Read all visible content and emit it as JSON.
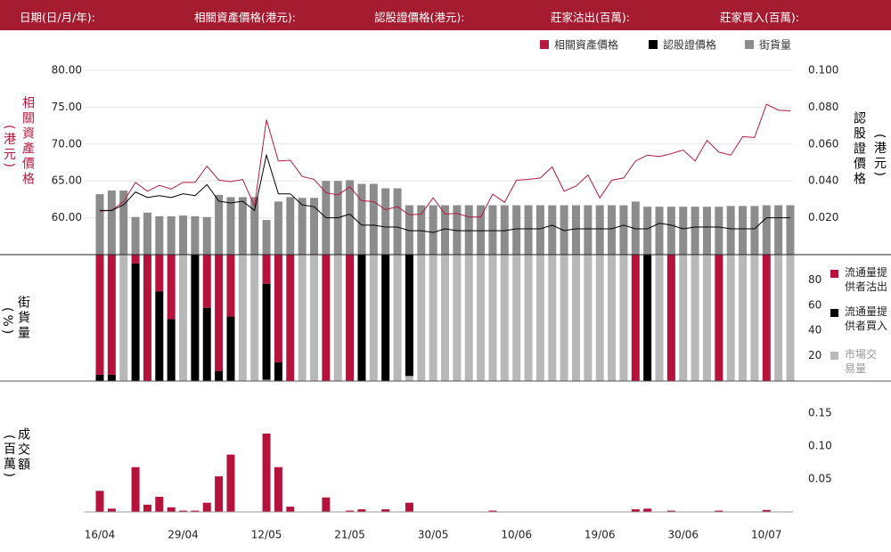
{
  "header": {
    "labels": [
      "日期(日/月/年):",
      "相關資產價格(港元):",
      "認股證價格(港元):",
      "莊家沽出(百萬):",
      "莊家買入(百萬):"
    ]
  },
  "chart_data": [
    {
      "type": "combo",
      "ylabel": "相關資產價格",
      "ylabel_unit": "(港元)",
      "y2label": "認股證價格",
      "y2label_unit": "(港元)",
      "ylim": [
        55,
        80
      ],
      "yticks": [
        {
          "value": 60,
          "label": "60.00"
        },
        {
          "value": 65,
          "label": "65.00"
        },
        {
          "value": 70,
          "label": "70.00"
        },
        {
          "value": 75,
          "label": "75.00"
        },
        {
          "value": 80,
          "label": "80.00"
        }
      ],
      "y2lim": [
        0,
        0.1
      ],
      "y2ticks": [
        {
          "value": 0.02,
          "label": "0.020"
        },
        {
          "value": 0.04,
          "label": "0.040"
        },
        {
          "value": 0.06,
          "label": "0.060"
        },
        {
          "value": 0.08,
          "label": "0.080"
        },
        {
          "value": 0.1,
          "label": "0.100"
        }
      ],
      "grid": true,
      "legend": "top-right",
      "series": [
        {
          "name": "相關資產價格",
          "color": "#b31b3f",
          "type": "line",
          "values": [
            60.9,
            61.0,
            62.2,
            64.8,
            63.6,
            64.4,
            63.9,
            64.8,
            64.8,
            67.0,
            65.1,
            64.9,
            65.2,
            61.6,
            73.3,
            67.7,
            67.8,
            65.6,
            65.2,
            63.4,
            63.1,
            64.2,
            62.3,
            62.2,
            61.1,
            61.5,
            60.4,
            60.5,
            62.7,
            60.5,
            60.6,
            60.1,
            60.1,
            63.2,
            62.1,
            65.1,
            65.2,
            65.4,
            66.9,
            63.6,
            64.3,
            65.8,
            62.7,
            65.1,
            65.4,
            67.7,
            68.5,
            68.3,
            68.7,
            69.2,
            67.7,
            70.5,
            68.9,
            68.5,
            71.0,
            70.9,
            75.4,
            74.6,
            74.5
          ]
        },
        {
          "name": "認股證價格",
          "color": "#000000",
          "type": "line",
          "axis": "y2",
          "values": [
            0.024,
            0.024,
            0.027,
            0.034,
            0.031,
            0.032,
            0.031,
            0.033,
            0.032,
            0.038,
            0.029,
            0.028,
            0.029,
            0.024,
            0.054,
            0.033,
            0.033,
            0.027,
            0.026,
            0.02,
            0.02,
            0.022,
            0.016,
            0.016,
            0.015,
            0.015,
            0.013,
            0.013,
            0.012,
            0.014,
            0.013,
            0.013,
            0.013,
            0.013,
            0.013,
            0.014,
            0.014,
            0.014,
            0.016,
            0.013,
            0.014,
            0.014,
            0.014,
            0.014,
            0.016,
            0.014,
            0.014,
            0.017,
            0.016,
            0.014,
            0.015,
            0.015,
            0.015,
            0.014,
            0.014,
            0.014,
            0.02,
            0.02,
            0.02
          ]
        },
        {
          "name": "街貨量",
          "color": "#8c8c8c",
          "type": "bar",
          "values": [
            63.2,
            63.7,
            63.7,
            60.1,
            60.7,
            60.2,
            60.2,
            60.3,
            60.2,
            60.1,
            63.1,
            62.8,
            62.8,
            62.8,
            59.7,
            62.2,
            62.8,
            62.7,
            62.7,
            65.0,
            65.0,
            65.1,
            64.6,
            64.6,
            64.0,
            64.0,
            61.7,
            61.7,
            61.7,
            61.7,
            61.7,
            61.7,
            61.7,
            61.7,
            61.7,
            61.7,
            61.7,
            61.7,
            61.7,
            61.7,
            61.7,
            61.7,
            61.7,
            61.7,
            61.7,
            62.2,
            61.5,
            61.5,
            61.5,
            61.5,
            61.5,
            61.5,
            61.5,
            61.6,
            61.6,
            61.6,
            61.7,
            61.7,
            61.7
          ]
        }
      ]
    },
    {
      "type": "stacked_bar",
      "ylabel": "街貨量",
      "ylabel_unit": "(%)",
      "ylim": [
        0,
        100
      ],
      "yticks": [
        20,
        40,
        60,
        80
      ],
      "legend": "right",
      "series": [
        {
          "name": "流通量提供者沽出",
          "color": "#b5133c",
          "values": [
            95,
            95,
            0,
            7,
            100,
            29,
            51,
            0,
            0,
            42,
            92,
            49,
            0,
            0,
            23,
            85,
            100,
            0,
            0,
            100,
            0,
            100,
            0,
            0,
            0,
            0,
            0,
            0,
            0,
            0,
            0,
            0,
            0,
            0,
            0,
            0,
            0,
            0,
            0,
            0,
            0,
            0,
            0,
            0,
            0,
            100,
            0,
            0,
            100,
            0,
            0,
            0,
            100,
            0,
            0,
            0,
            100,
            0,
            0
          ]
        },
        {
          "name": "流通量提供者買入",
          "color": "#000000",
          "values": [
            5,
            5,
            0,
            93,
            0,
            71,
            49,
            0,
            100,
            58,
            8,
            51,
            0,
            0,
            76,
            15,
            0,
            0,
            0,
            0,
            0,
            0,
            100,
            0,
            100,
            0,
            96,
            0,
            0,
            0,
            0,
            0,
            0,
            0,
            0,
            0,
            0,
            0,
            0,
            0,
            0,
            0,
            0,
            0,
            0,
            0,
            100,
            0,
            0,
            0,
            0,
            0,
            0,
            0,
            0,
            0,
            0,
            0,
            0
          ]
        },
        {
          "name": "市場交易量",
          "color": "#b8b8b8",
          "values": [
            0,
            0,
            100,
            0,
            0,
            0,
            0,
            100,
            0,
            0,
            0,
            0,
            100,
            100,
            1,
            0,
            0,
            100,
            100,
            0,
            100,
            0,
            0,
            100,
            0,
            100,
            4,
            100,
            100,
            100,
            100,
            100,
            100,
            100,
            100,
            100,
            100,
            100,
            100,
            100,
            100,
            100,
            100,
            100,
            100,
            0,
            0,
            100,
            0,
            100,
            100,
            100,
            0,
            100,
            100,
            100,
            0,
            100,
            100
          ]
        }
      ]
    },
    {
      "type": "bar",
      "ylabel": "成交額",
      "ylabel_unit": "(百萬)",
      "ylim": [
        0,
        0.2
      ],
      "yticks": [
        0.05,
        {
          "value": 0.1,
          "label": "0.10"
        },
        0.15
      ],
      "color": "#b5133c",
      "categories": [
        "16/04",
        null,
        null,
        null,
        null,
        null,
        null,
        "29/04",
        null,
        null,
        null,
        null,
        null,
        null,
        "12/05",
        null,
        null,
        null,
        null,
        null,
        null,
        "21/05",
        null,
        null,
        null,
        null,
        null,
        null,
        "30/05",
        null,
        null,
        null,
        null,
        null,
        null,
        "10/06",
        null,
        null,
        null,
        null,
        null,
        null,
        "19/06",
        null,
        null,
        null,
        null,
        null,
        null,
        "30/06",
        null,
        null,
        null,
        null,
        null,
        null,
        "10/07",
        null,
        null
      ],
      "values": [
        0.032,
        0.005,
        0,
        0.068,
        0.011,
        0.023,
        0.007,
        0.002,
        0.002,
        0.014,
        0.054,
        0.087,
        0,
        0,
        0.119,
        0.068,
        0.008,
        0,
        0,
        0.022,
        0,
        0.002,
        0.004,
        0,
        0.004,
        0,
        0.014,
        0,
        0,
        0,
        0,
        0,
        0,
        0.002,
        0,
        0,
        0,
        0,
        0,
        0,
        0,
        0,
        0,
        0,
        0,
        0.004,
        0.005,
        0,
        0.002,
        0,
        0,
        0,
        0.002,
        0,
        0,
        0,
        0.003,
        0,
        0
      ]
    }
  ]
}
